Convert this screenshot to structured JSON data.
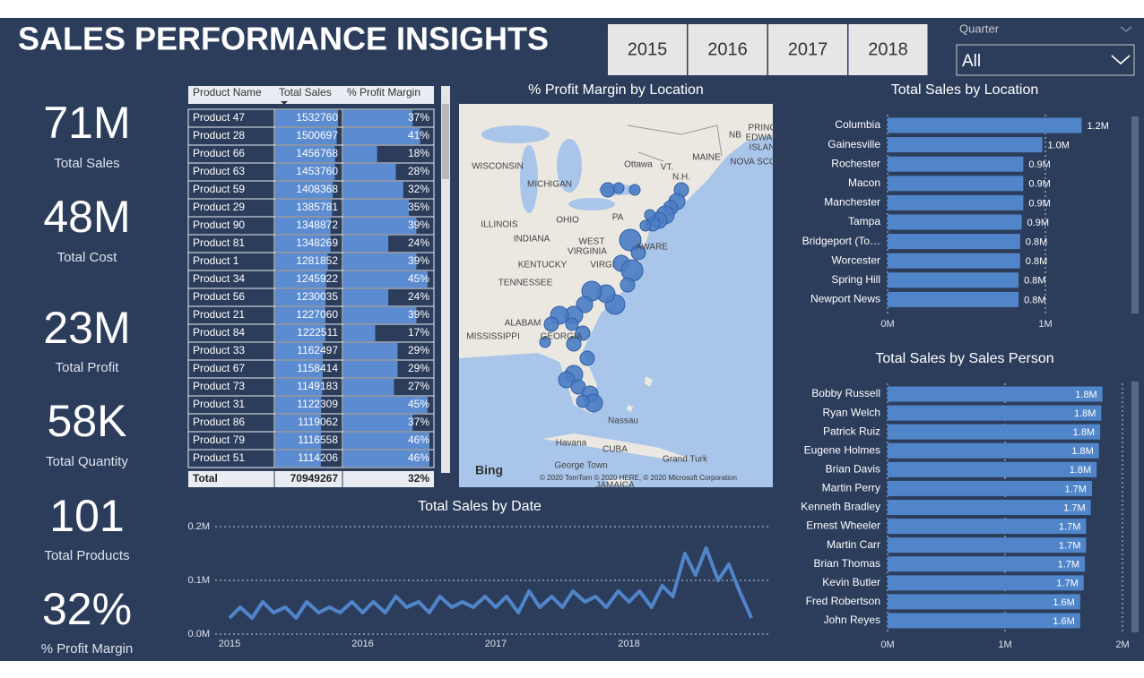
{
  "header": {
    "title": "SALES PERFORMANCE INSIGHTS"
  },
  "year_slicer": {
    "options": [
      "2015",
      "2016",
      "2017",
      "2018"
    ]
  },
  "quarter_slicer": {
    "label": "Quarter",
    "selected": "All"
  },
  "kpis": [
    {
      "value": "71M",
      "label": "Total Sales"
    },
    {
      "value": "48M",
      "label": "Total Cost"
    },
    {
      "value": "23M",
      "label": "Total Profit"
    },
    {
      "value": "58K",
      "label": "Total Quantity"
    },
    {
      "value": "101",
      "label": "Total Products"
    },
    {
      "value": "32%",
      "label": "% Profit Margin"
    }
  ],
  "table": {
    "columns": [
      "Product Name",
      "Total Sales",
      "% Profit Margin"
    ],
    "rows": [
      {
        "name": "Product 47",
        "sales": 1532760,
        "margin": "37%"
      },
      {
        "name": "Product 28",
        "sales": 1500697,
        "margin": "41%"
      },
      {
        "name": "Product 66",
        "sales": 1456768,
        "margin": "18%"
      },
      {
        "name": "Product 63",
        "sales": 1453760,
        "margin": "28%"
      },
      {
        "name": "Product 59",
        "sales": 1408368,
        "margin": "32%"
      },
      {
        "name": "Product 29",
        "sales": 1385781,
        "margin": "35%"
      },
      {
        "name": "Product 90",
        "sales": 1348872,
        "margin": "39%"
      },
      {
        "name": "Product 81",
        "sales": 1348269,
        "margin": "24%"
      },
      {
        "name": "Product 1",
        "sales": 1281852,
        "margin": "39%"
      },
      {
        "name": "Product 34",
        "sales": 1245922,
        "margin": "45%"
      },
      {
        "name": "Product 56",
        "sales": 1230035,
        "margin": "24%"
      },
      {
        "name": "Product 21",
        "sales": 1227060,
        "margin": "39%"
      },
      {
        "name": "Product 84",
        "sales": 1222511,
        "margin": "17%"
      },
      {
        "name": "Product 33",
        "sales": 1162497,
        "margin": "29%"
      },
      {
        "name": "Product 67",
        "sales": 1158414,
        "margin": "29%"
      },
      {
        "name": "Product 73",
        "sales": 1149183,
        "margin": "27%"
      },
      {
        "name": "Product 31",
        "sales": 1122309,
        "margin": "45%"
      },
      {
        "name": "Product 86",
        "sales": 1119062,
        "margin": "37%"
      },
      {
        "name": "Product 79",
        "sales": 1116558,
        "margin": "46%"
      },
      {
        "name": "Product 51",
        "sales": 1114206,
        "margin": "46%"
      }
    ],
    "total": {
      "label": "Total",
      "sales": 70949267,
      "margin": "32%"
    }
  },
  "map": {
    "title": "% Profit Margin by Location",
    "labels": [
      "WISCONSIN",
      "MICHIGAN",
      "Ottawa",
      "MAINE",
      "VT.",
      "N.H.",
      "NB",
      "PRINC",
      "EDWAR",
      "ISLAN",
      "NOVA SCO",
      "ILLINOIS",
      "INDIANA",
      "OHIO",
      "PA",
      "WEST",
      "VIRGINIA",
      "AWARE",
      "KENTUCKY",
      "VIRGI",
      "TENNESSEE",
      "ALABAM",
      "MISSISSIPPI",
      "GEORGIA",
      "Nassau",
      "Havana",
      "CUBA",
      "George Town",
      "Grand Turk",
      "JAMAICA"
    ],
    "logo": "Bing",
    "copyright": "© 2020 TomTom © 2020 HERE, © 2020 Microsoft Corporation"
  },
  "chart_data": [
    {
      "type": "hbar",
      "title": "Total Sales by Location",
      "categories": [
        "Columbia",
        "Gainesville",
        "Rochester",
        "Macon",
        "Manchester",
        "Tampa",
        "Bridgeport (To…",
        "Worcester",
        "Spring Hill",
        "Newport News"
      ],
      "values": [
        1.23,
        0.98,
        0.86,
        0.86,
        0.86,
        0.85,
        0.84,
        0.84,
        0.83,
        0.83
      ],
      "value_labels": [
        "1.2M",
        "1.0M",
        "0.9M",
        "0.9M",
        "0.9M",
        "0.9M",
        "0.8M",
        "0.8M",
        "0.8M",
        "0.8M"
      ],
      "color": "#5185c9",
      "xlim": [
        0,
        1.5
      ],
      "xticks": [
        {
          "value": 0,
          "label": "0M"
        },
        {
          "value": 1,
          "label": "1M"
        }
      ],
      "label_position": "outside"
    },
    {
      "type": "hbar",
      "title": "Total Sales by Sales Person",
      "categories": [
        "Bobby Russell",
        "Ryan Welch",
        "Patrick Ruiz",
        "Eugene Holmes",
        "Brian Davis",
        "Martin Perry",
        "Kenneth Bradley",
        "Ernest Wheeler",
        "Martin Carr",
        "Brian Thomas",
        "Kevin Butler",
        "Fred Robertson",
        "John Reyes"
      ],
      "values": [
        1.83,
        1.82,
        1.81,
        1.8,
        1.78,
        1.74,
        1.73,
        1.69,
        1.69,
        1.68,
        1.67,
        1.64,
        1.64
      ],
      "value_labels": [
        "1.8M",
        "1.8M",
        "1.8M",
        "1.8M",
        "1.8M",
        "1.7M",
        "1.7M",
        "1.7M",
        "1.7M",
        "1.7M",
        "1.7M",
        "1.6M",
        "1.6M"
      ],
      "color": "#5185c9",
      "xlim": [
        0,
        2
      ],
      "xticks": [
        {
          "value": 0,
          "label": "0M"
        },
        {
          "value": 1,
          "label": "1M"
        },
        {
          "value": 2,
          "label": "2M"
        }
      ],
      "label_position": "inside"
    },
    {
      "type": "line",
      "title": "Total Sales by Date",
      "x": [
        2015.0,
        2015.08,
        2015.17,
        2015.25,
        2015.33,
        2015.42,
        2015.5,
        2015.58,
        2015.67,
        2015.75,
        2015.83,
        2015.92,
        2016.0,
        2016.08,
        2016.17,
        2016.25,
        2016.33,
        2016.42,
        2016.5,
        2016.58,
        2016.67,
        2016.75,
        2016.83,
        2016.92,
        2017.0,
        2017.08,
        2017.17,
        2017.25,
        2017.33,
        2017.42,
        2017.5,
        2017.58,
        2017.67,
        2017.75,
        2017.83,
        2017.92,
        2018.0,
        2018.08,
        2018.17,
        2018.25,
        2018.33,
        2018.42,
        2018.5,
        2018.58,
        2018.67,
        2018.75,
        2018.83,
        2018.92
      ],
      "values": [
        0.03,
        0.05,
        0.03,
        0.06,
        0.04,
        0.05,
        0.03,
        0.06,
        0.04,
        0.05,
        0.04,
        0.06,
        0.04,
        0.06,
        0.04,
        0.07,
        0.05,
        0.06,
        0.04,
        0.07,
        0.05,
        0.06,
        0.05,
        0.07,
        0.05,
        0.07,
        0.04,
        0.08,
        0.05,
        0.07,
        0.05,
        0.08,
        0.06,
        0.07,
        0.05,
        0.08,
        0.06,
        0.08,
        0.05,
        0.09,
        0.07,
        0.15,
        0.11,
        0.16,
        0.1,
        0.13,
        0.08,
        0.03
      ],
      "color": "#5185c9",
      "xlim": [
        2015,
        2019
      ],
      "xticks": [
        2015,
        2016,
        2017,
        2018
      ],
      "ylim": [
        0,
        0.2
      ],
      "yticks": [
        {
          "value": 0,
          "label": "0.0M"
        },
        {
          "value": 0.1,
          "label": "0.1M"
        },
        {
          "value": 0.2,
          "label": "0.2M"
        }
      ],
      "grid": true
    }
  ]
}
